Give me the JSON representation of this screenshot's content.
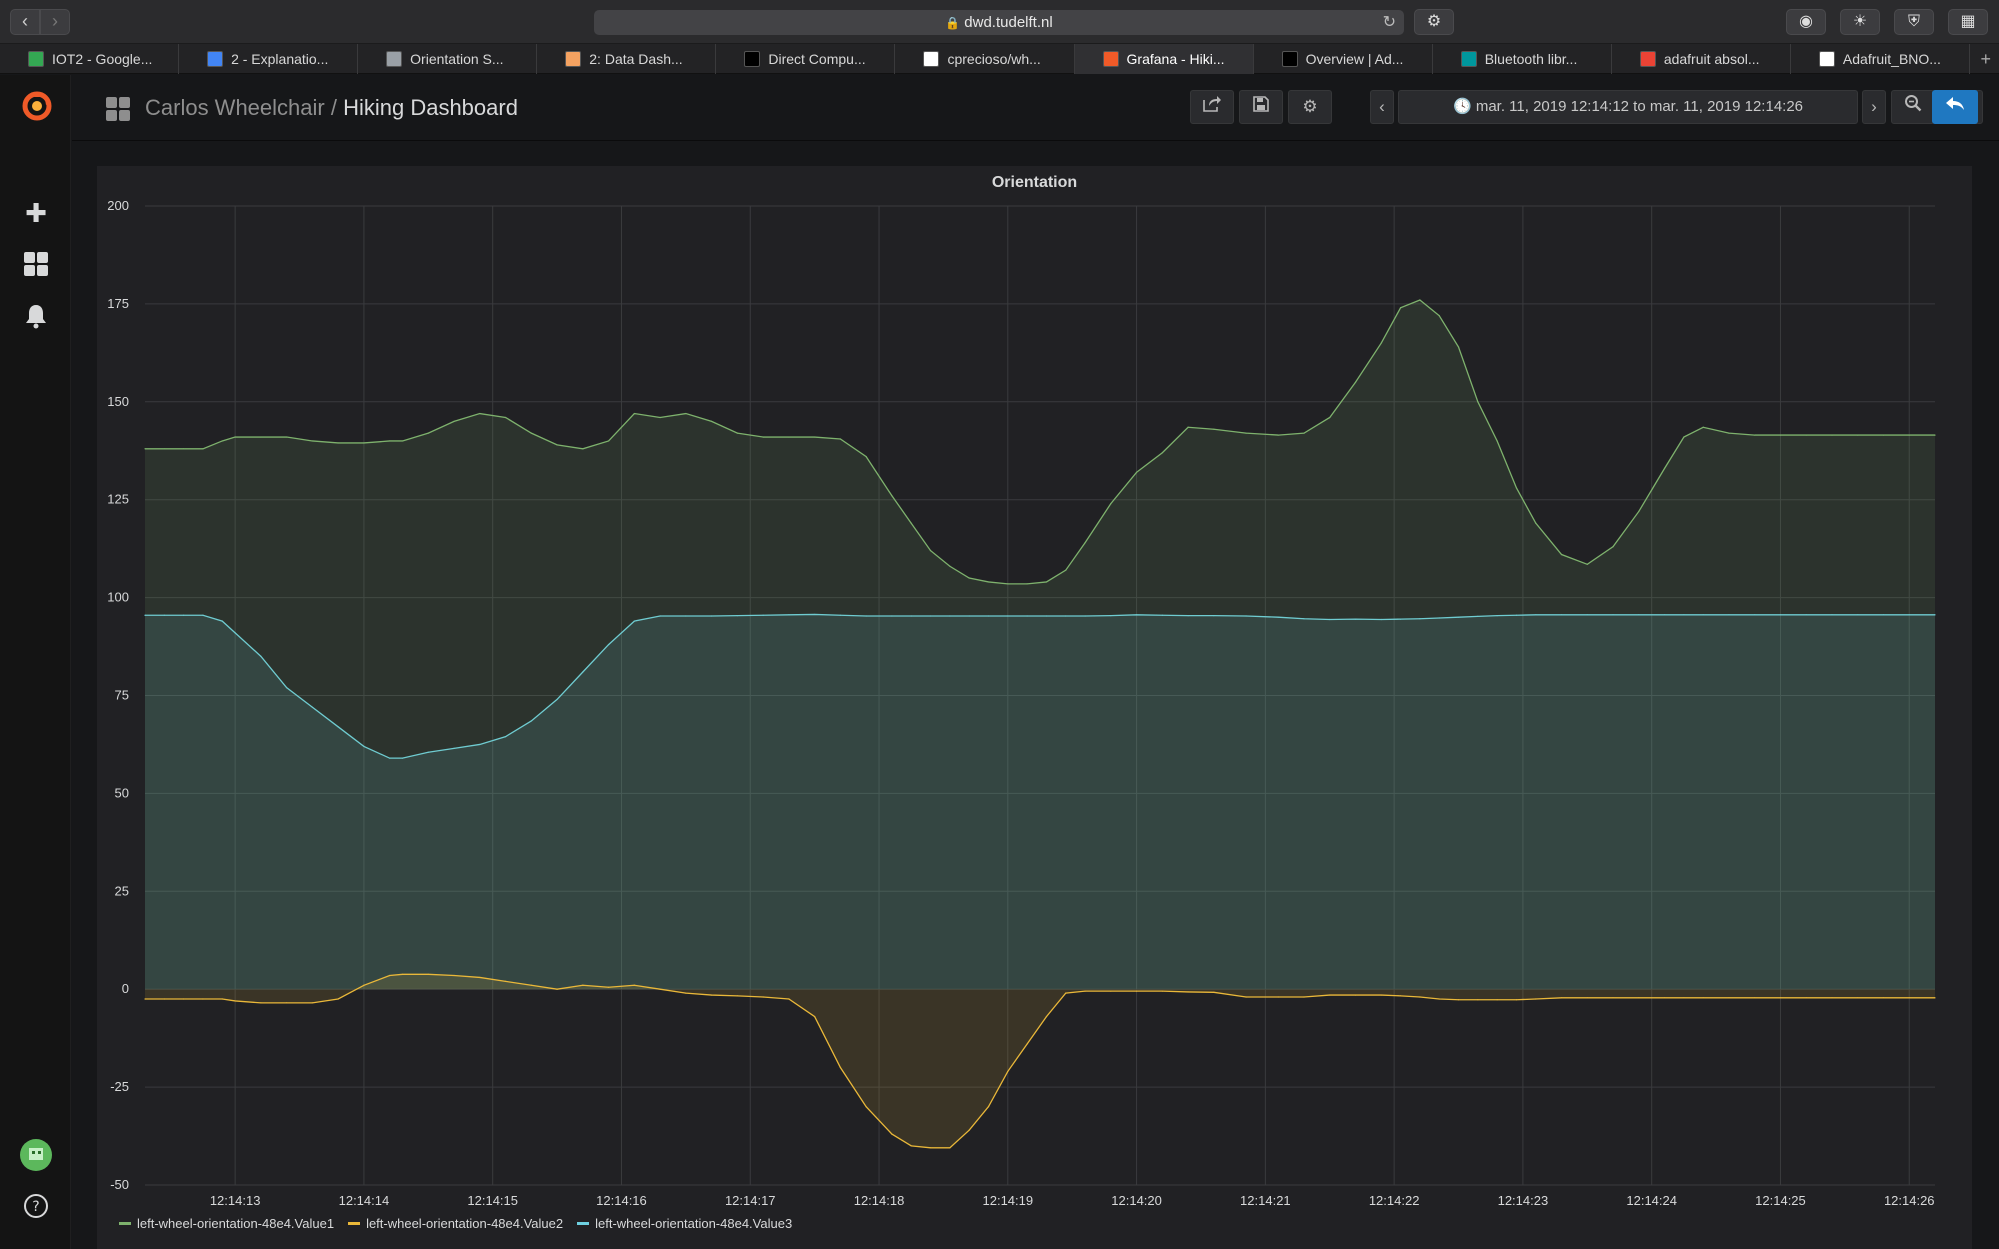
{
  "browser": {
    "url": "dwd.tudelft.nl",
    "tabs": [
      {
        "label": "IOT2 - Google...",
        "color": "#34a853"
      },
      {
        "label": "2 - Explanatio...",
        "color": "#4285f4"
      },
      {
        "label": "Orientation S...",
        "color": "#9aa0a6"
      },
      {
        "label": "2: Data Dash...",
        "color": "#f4a261"
      },
      {
        "label": "Direct Compu...",
        "color": "#000000"
      },
      {
        "label": "cprecioso/wh...",
        "color": "#ffffff"
      },
      {
        "label": "Grafana - Hiki...",
        "color": "#f05a28"
      },
      {
        "label": "Overview | Ad...",
        "color": "#000000"
      },
      {
        "label": "Bluetooth libr...",
        "color": "#00979d"
      },
      {
        "label": "adafruit absol...",
        "color": "#ea4335"
      },
      {
        "label": "Adafruit_BNO...",
        "color": "#ffffff"
      }
    ],
    "active_tab": 6
  },
  "navbar": {
    "folder": "Carlos Wheelchair",
    "separator": " / ",
    "dashboard": "Hiking Dashboard",
    "time_range": "mar. 11, 2019 12:14:12 to mar. 11, 2019 12:14:26"
  },
  "panel": {
    "title": "Orientation"
  },
  "chart_data": {
    "type": "area",
    "title": "Orientation",
    "xlabel": "",
    "ylabel": "",
    "ylim": [
      -50,
      200
    ],
    "yticks": [
      200,
      175,
      150,
      125,
      100,
      75,
      50,
      25,
      0,
      -25,
      -50
    ],
    "xlim": [
      "12:14:12.3",
      "12:14:26.2"
    ],
    "xticks": [
      "12:14:13",
      "12:14:14",
      "12:14:15",
      "12:14:16",
      "12:14:17",
      "12:14:18",
      "12:14:19",
      "12:14:20",
      "12:14:21",
      "12:14:22",
      "12:14:23",
      "12:14:24",
      "12:14:25",
      "12:14:26"
    ],
    "x": [
      "12:14:12.3",
      "12:14:12.45",
      "12:14:12.6",
      "12:14:12.75",
      "12:14:12.9",
      "12:14:13.0",
      "12:14:13.2",
      "12:14:13.4",
      "12:14:13.6",
      "12:14:13.8",
      "12:14:14.0",
      "12:14:14.2",
      "12:14:14.3",
      "12:14:14.5",
      "12:14:14.7",
      "12:14:14.9",
      "12:14:15.1",
      "12:14:15.3",
      "12:14:15.5",
      "12:14:15.7",
      "12:14:15.9",
      "12:14:16.1",
      "12:14:16.3",
      "12:14:16.5",
      "12:14:16.7",
      "12:14:16.9",
      "12:14:17.1",
      "12:14:17.3",
      "12:14:17.5",
      "12:14:17.7",
      "12:14:17.9",
      "12:14:18.1",
      "12:14:18.25",
      "12:14:18.4",
      "12:14:18.55",
      "12:14:18.7",
      "12:14:18.85",
      "12:14:19.0",
      "12:14:19.15",
      "12:14:19.3",
      "12:14:19.45",
      "12:14:19.6",
      "12:14:19.8",
      "12:14:20.0",
      "12:14:20.2",
      "12:14:20.4",
      "12:14:20.6",
      "12:14:20.85",
      "12:14:21.1",
      "12:14:21.3",
      "12:14:21.5",
      "12:14:21.7",
      "12:14:21.9",
      "12:14:22.05",
      "12:14:22.2",
      "12:14:22.35",
      "12:14:22.5",
      "12:14:22.65",
      "12:14:22.8",
      "12:14:22.95",
      "12:14:23.1",
      "12:14:23.3",
      "12:14:23.5",
      "12:14:23.7",
      "12:14:23.9",
      "12:14:24.1",
      "12:14:24.25",
      "12:14:24.4",
      "12:14:24.6",
      "12:14:24.8",
      "12:14:25.0",
      "12:14:25.2",
      "12:14:25.4",
      "12:14:25.6",
      "12:14:25.8",
      "12:14:26.0",
      "12:14:26.2"
    ],
    "series": [
      {
        "name": "left-wheel-orientation-48e4.Value1",
        "color": "#7eb26d",
        "values": [
          138,
          138,
          138,
          138,
          140,
          141,
          141,
          141,
          140,
          139.5,
          139.5,
          140,
          140,
          142,
          145,
          147,
          146,
          142,
          139,
          138,
          140,
          147,
          146,
          147,
          145,
          142,
          141,
          141,
          141,
          140.5,
          136,
          126,
          119,
          112,
          108,
          105,
          104,
          103.5,
          103.5,
          104,
          107,
          114,
          124,
          132,
          137,
          143.5,
          143,
          142,
          141.5,
          142,
          146,
          155,
          165,
          174,
          176,
          172,
          164,
          150,
          140,
          128,
          119,
          111,
          108.5,
          113,
          122,
          133,
          141,
          143.5,
          142,
          141.5,
          141.5,
          141.5,
          141.5,
          141.5,
          141.5,
          141.5,
          141.5
        ]
      },
      {
        "name": "left-wheel-orientation-48e4.Value2",
        "color": "#eab839",
        "values": [
          -2.5,
          -2.5,
          -2.5,
          -2.5,
          -2.5,
          -3,
          -3.5,
          -3.5,
          -3.5,
          -2.5,
          1,
          3.5,
          3.8,
          3.8,
          3.5,
          3,
          2,
          1,
          0,
          1,
          0.5,
          1,
          0,
          -1,
          -1.5,
          -1.7,
          -2,
          -2.5,
          -7,
          -20,
          -30,
          -37,
          -40,
          -40.5,
          -40.5,
          -36,
          -30,
          -21,
          -14,
          -7,
          -1,
          -0.5,
          -0.5,
          -0.5,
          -0.5,
          -0.7,
          -0.8,
          -2,
          -2,
          -2,
          -1.5,
          -1.5,
          -1.5,
          -1.7,
          -2,
          -2.5,
          -2.7,
          -2.7,
          -2.7,
          -2.7,
          -2.5,
          -2.2,
          -2.2,
          -2.2,
          -2.2,
          -2.2,
          -2.2,
          -2.2,
          -2.2,
          -2.2,
          -2.2,
          -2.2,
          -2.2,
          -2.2,
          -2.2,
          -2.2,
          -2.2
        ]
      },
      {
        "name": "left-wheel-orientation-48e4.Value3",
        "color": "#6ed0e0",
        "values": [
          95.5,
          95.5,
          95.5,
          95.5,
          94,
          91,
          85,
          77,
          72,
          67,
          62,
          59,
          59,
          60.5,
          61.5,
          62.5,
          64.5,
          68.5,
          74,
          81,
          88,
          94,
          95.3,
          95.3,
          95.3,
          95.4,
          95.5,
          95.6,
          95.7,
          95.5,
          95.3,
          95.3,
          95.3,
          95.3,
          95.3,
          95.3,
          95.3,
          95.3,
          95.3,
          95.3,
          95.3,
          95.3,
          95.4,
          95.6,
          95.5,
          95.4,
          95.4,
          95.3,
          95,
          94.6,
          94.4,
          94.5,
          94.4,
          94.5,
          94.6,
          94.8,
          95,
          95.2,
          95.4,
          95.5,
          95.6,
          95.6,
          95.6,
          95.6,
          95.6,
          95.6,
          95.6,
          95.6,
          95.6,
          95.6,
          95.6,
          95.6,
          95.6,
          95.6,
          95.6,
          95.6,
          95.6
        ]
      }
    ],
    "grid": true,
    "legend_position": "bottom-left"
  }
}
